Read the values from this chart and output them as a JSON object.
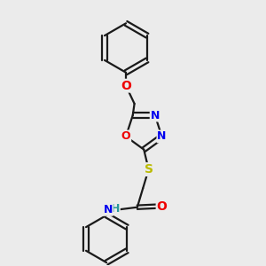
{
  "bg_color": "#ebebeb",
  "bond_color": "#1a1a1a",
  "bond_width": 1.6,
  "colors": {
    "N": "#0000ee",
    "O": "#ee0000",
    "S": "#bbbb00",
    "H": "#2a9a9a",
    "C": "#1a1a1a"
  },
  "font_size": 9
}
